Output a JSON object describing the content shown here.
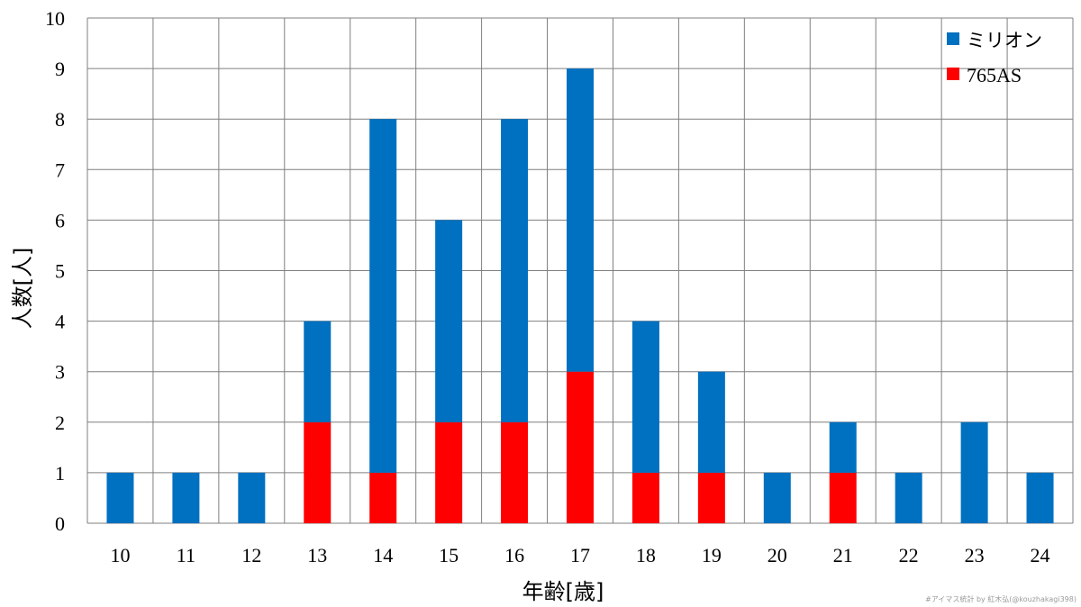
{
  "chart_data": {
    "type": "bar",
    "stacked": true,
    "categories": [
      "10",
      "11",
      "12",
      "13",
      "14",
      "15",
      "16",
      "17",
      "18",
      "19",
      "20",
      "21",
      "22",
      "23",
      "24"
    ],
    "series": [
      {
        "name": "765AS",
        "color": "#ff0000",
        "values": [
          0,
          0,
          0,
          2,
          1,
          2,
          2,
          3,
          1,
          1,
          0,
          1,
          0,
          0,
          0
        ]
      },
      {
        "name": "ミリオン",
        "color": "#0070c0",
        "values": [
          1,
          1,
          1,
          2,
          7,
          4,
          6,
          6,
          3,
          2,
          1,
          1,
          1,
          2,
          1
        ]
      }
    ],
    "legend_order": [
      "ミリオン",
      "765AS"
    ],
    "xlabel": "年齢[歳]",
    "ylabel": "人数[人]",
    "ylim": [
      0,
      10
    ],
    "yticks": [
      0,
      1,
      2,
      3,
      4,
      5,
      6,
      7,
      8,
      9,
      10
    ],
    "grid": true,
    "legend_position": "top-right"
  },
  "credit": "#アイマス統計 by 紅木弘(@kouzhakagi398)"
}
